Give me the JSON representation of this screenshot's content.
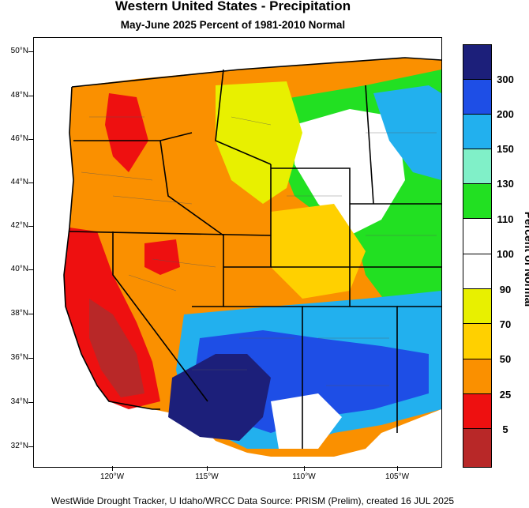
{
  "title": "Western United States - Precipitation",
  "subtitle": "May-June 2025  Percent of 1981-2010 Normal",
  "footer": "WestWide Drought Tracker, U Idaho/WRCC Data Source: PRISM (Prelim), created 16 JUL 2025",
  "legend": {
    "title": "Percent of Normal",
    "labels": [
      "300",
      "200",
      "150",
      "130",
      "110",
      "100",
      "90",
      "70",
      "50",
      "25",
      "5"
    ],
    "colors": [
      "#1c1f7a",
      "#1e4ee6",
      "#22b0ee",
      "#80f0c8",
      "#22e022",
      "#ffffff",
      "#ffffff",
      "#e8f000",
      "#ffd000",
      "#fa9000",
      "#ee1010",
      "#b82828"
    ]
  },
  "axes": {
    "lat_labels": [
      "50°N",
      "48°N",
      "46°N",
      "44°N",
      "42°N",
      "40°N",
      "38°N",
      "36°N",
      "34°N",
      "32°N"
    ],
    "lon_labels": [
      "120°W",
      "115°W",
      "110°W",
      "105°W"
    ]
  }
}
